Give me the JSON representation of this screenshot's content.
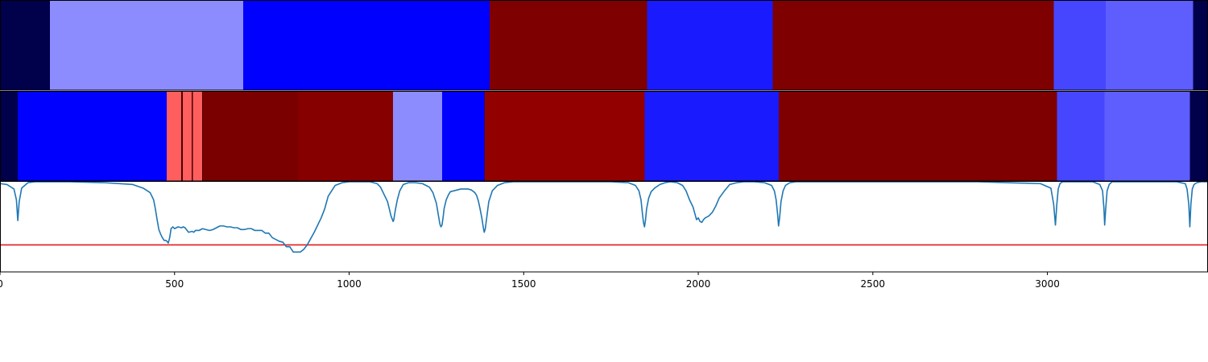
{
  "chart_data": {
    "type": "heatmap",
    "x_range": [
      0,
      3460
    ],
    "x_ticks": [
      0,
      500,
      1000,
      1500,
      2000,
      2500,
      3000
    ],
    "grid": false,
    "legend": "none",
    "panels": [
      {
        "name": "segmentation-track-1",
        "segments": [
          {
            "start": 0,
            "end": 143,
            "color": "#00004b"
          },
          {
            "start": 143,
            "end": 697,
            "color": "#8c8cff"
          },
          {
            "start": 697,
            "end": 1403,
            "color": "#0000ff"
          },
          {
            "start": 1403,
            "end": 1853,
            "color": "#7e0000"
          },
          {
            "start": 1853,
            "end": 2213,
            "color": "#1a1aff"
          },
          {
            "start": 2213,
            "end": 3018,
            "color": "#7e0000"
          },
          {
            "start": 3018,
            "end": 3167,
            "color": "#4646ff"
          },
          {
            "start": 3167,
            "end": 3417,
            "color": "#5e5eff"
          },
          {
            "start": 3417,
            "end": 3460,
            "color": "#00004b"
          }
        ]
      },
      {
        "name": "segmentation-track-2",
        "segments": [
          {
            "start": 0,
            "end": 51,
            "color": "#00004b"
          },
          {
            "start": 51,
            "end": 477,
            "color": "#0000ff"
          },
          {
            "start": 477,
            "end": 519,
            "color": "#ff5e5e"
          },
          {
            "start": 519,
            "end": 524,
            "color": "#4a0000"
          },
          {
            "start": 524,
            "end": 549,
            "color": "#ff5e5e"
          },
          {
            "start": 549,
            "end": 553,
            "color": "#4a0000"
          },
          {
            "start": 553,
            "end": 579,
            "color": "#ff5e5e"
          },
          {
            "start": 579,
            "end": 581,
            "color": "#4a0000"
          },
          {
            "start": 581,
            "end": 854,
            "color": "#7a0000"
          },
          {
            "start": 854,
            "end": 1126,
            "color": "#870000"
          },
          {
            "start": 1126,
            "end": 1266,
            "color": "#8c8cff"
          },
          {
            "start": 1266,
            "end": 1387,
            "color": "#0000ff"
          },
          {
            "start": 1387,
            "end": 1389,
            "color": "#4a0000"
          },
          {
            "start": 1389,
            "end": 1846,
            "color": "#920000"
          },
          {
            "start": 1846,
            "end": 2231,
            "color": "#1a1aff"
          },
          {
            "start": 2231,
            "end": 3027,
            "color": "#7e0000"
          },
          {
            "start": 3027,
            "end": 3164,
            "color": "#4646ff"
          },
          {
            "start": 3164,
            "end": 3408,
            "color": "#5e5eff"
          },
          {
            "start": 3408,
            "end": 3460,
            "color": "#00004b"
          }
        ]
      }
    ],
    "line_panel": {
      "y_range": [
        0,
        1
      ],
      "threshold": 0.3,
      "threshold_color": "#e41a1c",
      "line_color": "#1f77b4",
      "series": [
        {
          "x": [
            0,
            20,
            40,
            47,
            51,
            55,
            62,
            80,
            100,
            140,
            200,
            300,
            380,
            410,
            430,
            440,
            445,
            450,
            455,
            460,
            465,
            470,
            475,
            478,
            482,
            486,
            490,
            495,
            500,
            510,
            520,
            525,
            530,
            540,
            550,
            555,
            560,
            570,
            580,
            590,
            600,
            610,
            620,
            630,
            640,
            650,
            660,
            670,
            680,
            690,
            700,
            710,
            720,
            730,
            740,
            750,
            760,
            770,
            780,
            790,
            800,
            810,
            820,
            830,
            840,
            850,
            860,
            870,
            880,
            890,
            900,
            910,
            920,
            930,
            940,
            960,
            980,
            1000,
            1020,
            1040,
            1060,
            1080,
            1090,
            1100,
            1110,
            1115,
            1120,
            1124,
            1126,
            1128,
            1132,
            1138,
            1145,
            1155,
            1170,
            1190,
            1210,
            1230,
            1240,
            1250,
            1256,
            1260,
            1263,
            1266,
            1269,
            1272,
            1278,
            1285,
            1290,
            1300,
            1310,
            1320,
            1330,
            1340,
            1350,
            1360,
            1365,
            1370,
            1375,
            1380,
            1384,
            1387,
            1390,
            1394,
            1400,
            1410,
            1425,
            1445,
            1470,
            1500,
            1550,
            1650,
            1750,
            1800,
            1820,
            1830,
            1836,
            1840,
            1843,
            1846,
            1849,
            1852,
            1858,
            1865,
            1875,
            1890,
            1905,
            1920,
            1940,
            1955,
            1965,
            1975,
            1985,
            1990,
            1995,
            2000,
            2005,
            2010,
            2015,
            2020,
            2030,
            2040,
            2050,
            2060,
            2075,
            2090,
            2110,
            2130,
            2160,
            2190,
            2210,
            2218,
            2223,
            2227,
            2230,
            2233,
            2237,
            2243,
            2250,
            2262,
            2280,
            2310,
            2350,
            2450,
            2600,
            2800,
            2980,
            3010,
            3018,
            3023,
            3027,
            3031,
            3036,
            3043,
            3055,
            3075,
            3100,
            3130,
            3150,
            3158,
            3162,
            3164,
            3167,
            3171,
            3177,
            3185,
            3200,
            3230,
            3280,
            3330,
            3370,
            3395,
            3400,
            3405,
            3408,
            3411,
            3415,
            3420,
            3428,
            3440,
            3460
          ],
          "y": [
            0.98,
            0.97,
            0.92,
            0.8,
            0.57,
            0.78,
            0.93,
            0.99,
            1.0,
            1.0,
            1.0,
            0.99,
            0.97,
            0.93,
            0.88,
            0.8,
            0.7,
            0.58,
            0.47,
            0.42,
            0.38,
            0.35,
            0.35,
            0.34,
            0.32,
            0.38,
            0.48,
            0.5,
            0.48,
            0.5,
            0.49,
            0.5,
            0.49,
            0.44,
            0.45,
            0.44,
            0.46,
            0.46,
            0.48,
            0.47,
            0.46,
            0.47,
            0.49,
            0.51,
            0.51,
            0.5,
            0.5,
            0.49,
            0.49,
            0.47,
            0.47,
            0.48,
            0.48,
            0.46,
            0.46,
            0.46,
            0.43,
            0.43,
            0.38,
            0.36,
            0.34,
            0.33,
            0.28,
            0.28,
            0.22,
            0.22,
            0.22,
            0.25,
            0.3,
            0.37,
            0.44,
            0.52,
            0.6,
            0.7,
            0.84,
            0.96,
            0.99,
            1.0,
            1.0,
            1.0,
            1.0,
            0.98,
            0.94,
            0.86,
            0.78,
            0.7,
            0.62,
            0.58,
            0.56,
            0.58,
            0.68,
            0.8,
            0.9,
            0.97,
            0.99,
            0.99,
            0.98,
            0.94,
            0.88,
            0.76,
            0.62,
            0.53,
            0.5,
            0.52,
            0.6,
            0.7,
            0.8,
            0.86,
            0.89,
            0.9,
            0.91,
            0.92,
            0.92,
            0.92,
            0.91,
            0.88,
            0.85,
            0.79,
            0.7,
            0.6,
            0.5,
            0.44,
            0.48,
            0.6,
            0.78,
            0.9,
            0.96,
            0.99,
            1.0,
            1.0,
            1.0,
            1.0,
            1.0,
            0.99,
            0.96,
            0.9,
            0.8,
            0.65,
            0.55,
            0.5,
            0.58,
            0.7,
            0.82,
            0.89,
            0.93,
            0.97,
            0.99,
            1.0,
            0.99,
            0.96,
            0.9,
            0.8,
            0.72,
            0.65,
            0.58,
            0.6,
            0.56,
            0.55,
            0.58,
            0.6,
            0.62,
            0.66,
            0.73,
            0.82,
            0.9,
            0.97,
            0.99,
            1.0,
            1.0,
            0.99,
            0.96,
            0.9,
            0.8,
            0.65,
            0.51,
            0.6,
            0.78,
            0.9,
            0.96,
            0.99,
            1.0,
            1.0,
            1.0,
            1.0,
            1.0,
            1.0,
            0.98,
            0.93,
            0.75,
            0.52,
            0.75,
            0.92,
            0.98,
            1.0,
            1.0,
            1.0,
            1.0,
            1.0,
            0.97,
            0.9,
            0.7,
            0.52,
            0.7,
            0.9,
            0.97,
            1.0,
            1.0,
            1.0,
            1.0,
            1.0,
            1.0,
            0.98,
            0.92,
            0.75,
            0.5,
            0.75,
            0.92,
            0.97,
            0.99,
            1.0,
            1.0
          ]
        }
      ]
    }
  }
}
